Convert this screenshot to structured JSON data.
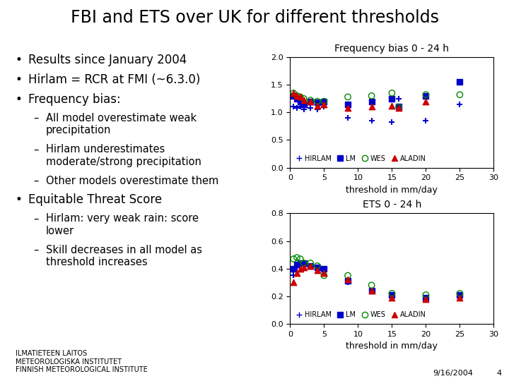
{
  "title": "FBI and ETS over UK for different thresholds",
  "annotations": [
    "• Results since January 2004",
    "• Hirlam = RCR at FMI (~6.3.0)",
    "• Frequency bias:",
    "– All model overestimate weak\nprecipitation",
    "– Hirlam underestimates\nmoderate/strong precipitation",
    "– Other models overestimate them",
    "• Equitable Threat Score",
    "– Hirlam: very weak rain: score\nlower",
    "– Skill decreases in all model as\nthreshold increases"
  ],
  "logo_text": "ILMATIETEEN LAITOS\nMETEOROLOGISKA INSTITUTET\nFINNISH METEOROLOGICAL INSTITUTE",
  "footer": [
    "9/16/2004",
    "4"
  ],
  "chart_data": [
    {
      "type": "scatter",
      "title": "Frequency bias 0 - 24 h",
      "x_label": "threshold in mm/day",
      "xlim": [
        0,
        30
      ],
      "ylim": [
        0.0,
        2.0
      ],
      "xticks": [
        0,
        5,
        10,
        15,
        20,
        25,
        30
      ],
      "yticks": [
        0.0,
        0.5,
        1.0,
        1.5,
        2.0
      ],
      "legend": "lower left",
      "series": [
        {
          "name": "HIRLAM",
          "color": "#0000cc",
          "marker": "plus",
          "x": [
            0.5,
            1.0,
            1.5,
            2.0,
            3.0,
            4.0,
            5.0,
            8.5,
            12.0,
            15.0,
            16.0,
            20.0,
            25.0
          ],
          "values": [
            1.1,
            1.08,
            1.1,
            1.05,
            1.08,
            1.05,
            1.1,
            0.9,
            0.85,
            0.82,
            1.25,
            0.85,
            1.15
          ]
        },
        {
          "name": "LM",
          "color": "#0000cc",
          "marker": "square",
          "x": [
            0.5,
            1.0,
            1.5,
            2.0,
            3.0,
            4.0,
            5.0,
            8.5,
            12.0,
            15.0,
            16.0,
            20.0,
            25.0
          ],
          "values": [
            1.3,
            1.25,
            1.2,
            1.15,
            1.2,
            1.18,
            1.2,
            1.15,
            1.2,
            1.25,
            1.1,
            1.3,
            1.55
          ]
        },
        {
          "name": "WES",
          "color": "#008800",
          "marker": "circle",
          "x": [
            0.5,
            1.0,
            1.5,
            2.0,
            3.0,
            4.0,
            5.0,
            8.5,
            12.0,
            15.0,
            16.0,
            20.0,
            25.0
          ],
          "values": [
            1.35,
            1.3,
            1.28,
            1.25,
            1.22,
            1.2,
            1.2,
            1.28,
            1.3,
            1.35,
            1.1,
            1.32,
            1.32
          ]
        },
        {
          "name": "ALADIN",
          "color": "#cc0000",
          "marker": "triangle",
          "x": [
            0.5,
            1.0,
            1.5,
            2.0,
            3.0,
            4.0,
            5.0,
            8.5,
            12.0,
            15.0,
            16.0,
            20.0
          ],
          "values": [
            1.35,
            1.3,
            1.28,
            1.22,
            1.2,
            1.12,
            1.15,
            1.08,
            1.1,
            1.12,
            1.08,
            1.2
          ]
        }
      ]
    },
    {
      "type": "scatter",
      "title": "ETS 0 - 24 h",
      "x_label": "threshold in mm/day",
      "xlim": [
        0,
        30
      ],
      "ylim": [
        0.0,
        0.8
      ],
      "xticks": [
        0,
        5,
        10,
        15,
        20,
        25,
        30
      ],
      "yticks": [
        0.0,
        0.2,
        0.4,
        0.6,
        0.8
      ],
      "legend": "lower left",
      "series": [
        {
          "name": "HIRLAM",
          "color": "#0000cc",
          "marker": "plus",
          "x": [
            0.5,
            1.0,
            1.5,
            2.0,
            3.0,
            4.0,
            5.0,
            8.5,
            12.0,
            15.0,
            20.0,
            25.0
          ],
          "values": [
            0.35,
            0.41,
            0.42,
            0.43,
            0.42,
            0.41,
            0.39,
            0.3,
            0.24,
            0.2,
            0.19,
            0.21
          ]
        },
        {
          "name": "LM",
          "color": "#0000cc",
          "marker": "square",
          "x": [
            0.5,
            1.0,
            1.5,
            2.0,
            3.0,
            4.0,
            5.0,
            8.5,
            12.0,
            15.0,
            20.0,
            25.0
          ],
          "values": [
            0.4,
            0.43,
            0.44,
            0.44,
            0.42,
            0.41,
            0.4,
            0.31,
            0.24,
            0.21,
            0.19,
            0.21
          ]
        },
        {
          "name": "WES",
          "color": "#008800",
          "marker": "circle",
          "x": [
            0.5,
            1.0,
            1.5,
            2.0,
            3.0,
            4.0,
            5.0,
            8.5,
            12.0,
            15.0,
            20.0,
            25.0
          ],
          "values": [
            0.47,
            0.48,
            0.47,
            0.44,
            0.44,
            0.42,
            0.35,
            0.35,
            0.28,
            0.22,
            0.21,
            0.22
          ]
        },
        {
          "name": "ALADIN",
          "color": "#cc0000",
          "marker": "triangle",
          "x": [
            0.5,
            1.0,
            1.5,
            2.0,
            3.0,
            4.0,
            5.0,
            8.5,
            12.0,
            15.0,
            20.0,
            25.0
          ],
          "values": [
            0.3,
            0.37,
            0.4,
            0.41,
            0.42,
            0.39,
            0.37,
            0.32,
            0.24,
            0.19,
            0.18,
            0.19
          ]
        }
      ]
    }
  ]
}
